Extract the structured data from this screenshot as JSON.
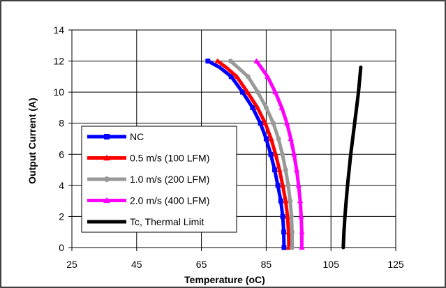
{
  "chart_data": {
    "type": "line",
    "title": "",
    "xlabel": "Temperature (oC)",
    "ylabel": "Output Current (A)",
    "xlim": [
      25,
      125
    ],
    "ylim": [
      0,
      14
    ],
    "xticks": [
      25,
      45,
      65,
      85,
      105,
      125
    ],
    "yticks": [
      0,
      2,
      4,
      6,
      8,
      10,
      12,
      14
    ],
    "grid": true,
    "legend_position": "bottom-left",
    "series": [
      {
        "name": "NC",
        "color": "#0000ff",
        "marker": "square",
        "x": [
          90.5,
          90.4,
          90.1,
          89.5,
          88.6,
          87.6,
          86.4,
          85.0,
          83.2,
          80.8,
          77.7,
          74.2,
          70.6,
          67.0
        ],
        "y": [
          0,
          1,
          2,
          3,
          4,
          5,
          6,
          7,
          8,
          9,
          10,
          11,
          11.6,
          12
        ]
      },
      {
        "name": "0.5 m/s (100 LFM)",
        "color": "#ff0000",
        "marker": "triangle",
        "x": [
          92.0,
          91.9,
          91.6,
          91.0,
          90.1,
          89.1,
          87.9,
          86.5,
          84.7,
          82.3,
          79.2,
          75.9,
          72.6,
          70.0
        ],
        "y": [
          0,
          1,
          2,
          3,
          4,
          5,
          6,
          7,
          8,
          9,
          10,
          11,
          11.6,
          12
        ]
      },
      {
        "name": "1.0 m/s (200 LFM)",
        "color": "#999999",
        "marker": "circle",
        "x": [
          93.0,
          93.0,
          92.8,
          92.4,
          91.8,
          91.0,
          90.0,
          88.8,
          87.2,
          85.0,
          82.4,
          79.4,
          76.2,
          74.0
        ],
        "y": [
          0,
          1,
          2,
          3,
          4,
          5,
          6,
          7,
          8,
          9,
          10,
          11,
          11.6,
          12
        ]
      },
      {
        "name": "2.0 m/s (400 LFM)",
        "color": "#ff00ff",
        "marker": "triangle",
        "x": [
          96.0,
          96.0,
          95.8,
          95.5,
          95.0,
          94.4,
          93.6,
          92.6,
          91.4,
          89.8,
          87.8,
          85.4,
          83.4,
          82.0
        ],
        "y": [
          0,
          1,
          2,
          3,
          4,
          5,
          6,
          7,
          8,
          9,
          10,
          11,
          11.6,
          12
        ]
      },
      {
        "name": "Tc, Thermal Limit",
        "color": "#000000",
        "marker": "none",
        "x": [
          108.8,
          109.0,
          109.3,
          109.7,
          110.1,
          110.6,
          111.1,
          111.7,
          112.3,
          112.9,
          113.5,
          114.2
        ],
        "y": [
          0,
          1,
          2,
          3,
          4,
          5,
          6,
          7,
          8,
          9,
          10,
          11.6
        ]
      }
    ]
  }
}
